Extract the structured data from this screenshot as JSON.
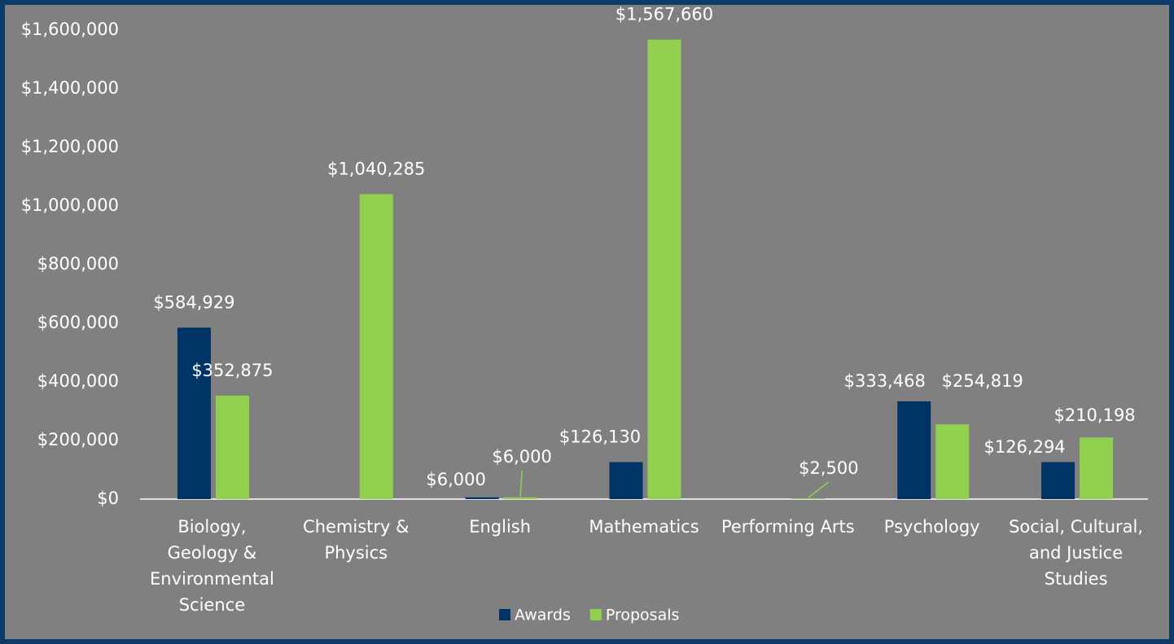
{
  "chart_data": {
    "type": "bar",
    "categories": [
      "Biology,\nGeology &\nEnvironmental\nScience",
      "Chemistry &\nPhysics",
      "English",
      "Mathematics",
      "Performing Arts",
      "Psychology",
      "Social, Cultural,\nand Justice\nStudies"
    ],
    "series": [
      {
        "name": "Awards",
        "color": "#003366",
        "values": [
          584929,
          null,
          6000,
          126130,
          null,
          333468,
          126294
        ],
        "value_labels": [
          "$584,929",
          null,
          "$6,000",
          "$126,130",
          null,
          "$333,468",
          "$126,294"
        ]
      },
      {
        "name": "Proposals",
        "color": "#92d050",
        "values": [
          352875,
          1040285,
          6000,
          1567660,
          2500,
          254819,
          210198
        ],
        "value_labels": [
          "$352,875",
          "$1,040,285",
          "$6,000",
          "$1,567,660",
          "$2,500",
          "$254,819",
          "$210,198"
        ]
      }
    ],
    "ylim": [
      0,
      1600000
    ],
    "yticks": [
      {
        "value": 0,
        "label": "$0"
      },
      {
        "value": 200000,
        "label": "$200,000"
      },
      {
        "value": 400000,
        "label": "$400,000"
      },
      {
        "value": 600000,
        "label": "$600,000"
      },
      {
        "value": 800000,
        "label": "$800,000"
      },
      {
        "value": 1000000,
        "label": "$1,000,000"
      },
      {
        "value": 1200000,
        "label": "$1,200,000"
      },
      {
        "value": 1400000,
        "label": "$1,400,000"
      },
      {
        "value": 1600000,
        "label": "$1,600,000"
      }
    ],
    "grid": false,
    "legend": "bottom"
  }
}
